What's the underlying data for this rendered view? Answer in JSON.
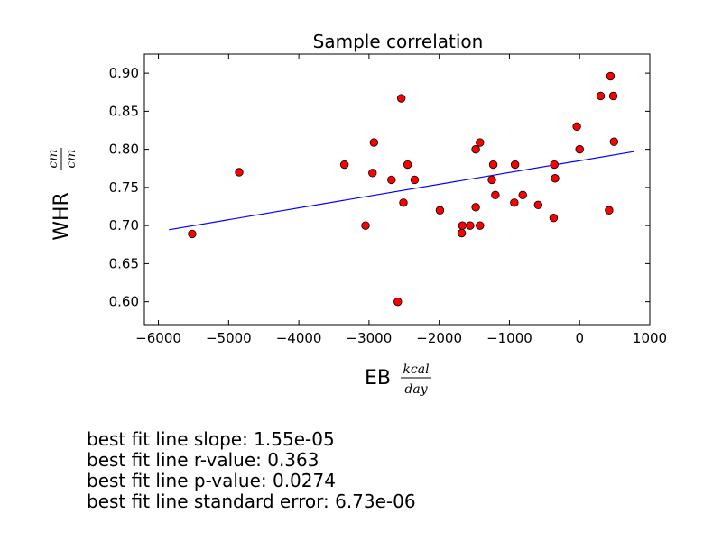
{
  "chart_data": {
    "type": "scatter",
    "title": "Sample correlation",
    "xlabel": "EB",
    "xlabel_unit_num": "kcal",
    "xlabel_unit_den": "day",
    "ylabel": "WHR",
    "ylabel_unit_num": "cm",
    "ylabel_unit_den": "cm",
    "xlim": [
      -6200,
      1000
    ],
    "ylim": [
      0.57,
      0.925
    ],
    "xticks": [
      -6000,
      -5000,
      -4000,
      -3000,
      -2000,
      -1000,
      0,
      1000
    ],
    "xtick_labels": [
      "−6000",
      "−5000",
      "−4000",
      "−3000",
      "−2000",
      "−1000",
      "0",
      "1000"
    ],
    "yticks": [
      0.6,
      0.65,
      0.7,
      0.75,
      0.8,
      0.85,
      0.9
    ],
    "ytick_labels": [
      "0.60",
      "0.65",
      "0.70",
      "0.75",
      "0.80",
      "0.85",
      "0.90"
    ],
    "grid": false,
    "points": [
      {
        "x": -5520,
        "y": 0.689
      },
      {
        "x": -4850,
        "y": 0.77
      },
      {
        "x": -3350,
        "y": 0.78
      },
      {
        "x": -3050,
        "y": 0.7
      },
      {
        "x": -2950,
        "y": 0.769
      },
      {
        "x": -2930,
        "y": 0.809
      },
      {
        "x": -2680,
        "y": 0.76
      },
      {
        "x": -2590,
        "y": 0.6
      },
      {
        "x": -2540,
        "y": 0.867
      },
      {
        "x": -2510,
        "y": 0.73
      },
      {
        "x": -2450,
        "y": 0.78
      },
      {
        "x": -2350,
        "y": 0.76
      },
      {
        "x": -1990,
        "y": 0.72
      },
      {
        "x": -1680,
        "y": 0.69
      },
      {
        "x": -1670,
        "y": 0.7
      },
      {
        "x": -1560,
        "y": 0.7
      },
      {
        "x": -1480,
        "y": 0.8
      },
      {
        "x": -1480,
        "y": 0.724
      },
      {
        "x": -1420,
        "y": 0.809
      },
      {
        "x": -1420,
        "y": 0.7
      },
      {
        "x": -1250,
        "y": 0.76
      },
      {
        "x": -1230,
        "y": 0.78
      },
      {
        "x": -1200,
        "y": 0.74
      },
      {
        "x": -930,
        "y": 0.73
      },
      {
        "x": -920,
        "y": 0.78
      },
      {
        "x": -810,
        "y": 0.74
      },
      {
        "x": -590,
        "y": 0.727
      },
      {
        "x": -370,
        "y": 0.71
      },
      {
        "x": -360,
        "y": 0.78
      },
      {
        "x": -350,
        "y": 0.762
      },
      {
        "x": -40,
        "y": 0.83
      },
      {
        "x": 0,
        "y": 0.8
      },
      {
        "x": 300,
        "y": 0.87
      },
      {
        "x": 420,
        "y": 0.72
      },
      {
        "x": 440,
        "y": 0.896
      },
      {
        "x": 480,
        "y": 0.87
      },
      {
        "x": 490,
        "y": 0.81
      }
    ],
    "fit_line": {
      "x": [
        -5850,
        770
      ],
      "y": [
        0.6945,
        0.797
      ]
    },
    "colors": {
      "point_fill": "#ff0000",
      "point_edge": "#000000",
      "fit_line": "#0000ff",
      "axes": "#000000"
    }
  },
  "stats": {
    "slope": "best fit line slope: 1.55e-05",
    "r_value": "best fit line r-value: 0.363",
    "p_value": "best fit line p-value: 0.0274",
    "std_err": "best fit line standard error: 6.73e-06"
  }
}
